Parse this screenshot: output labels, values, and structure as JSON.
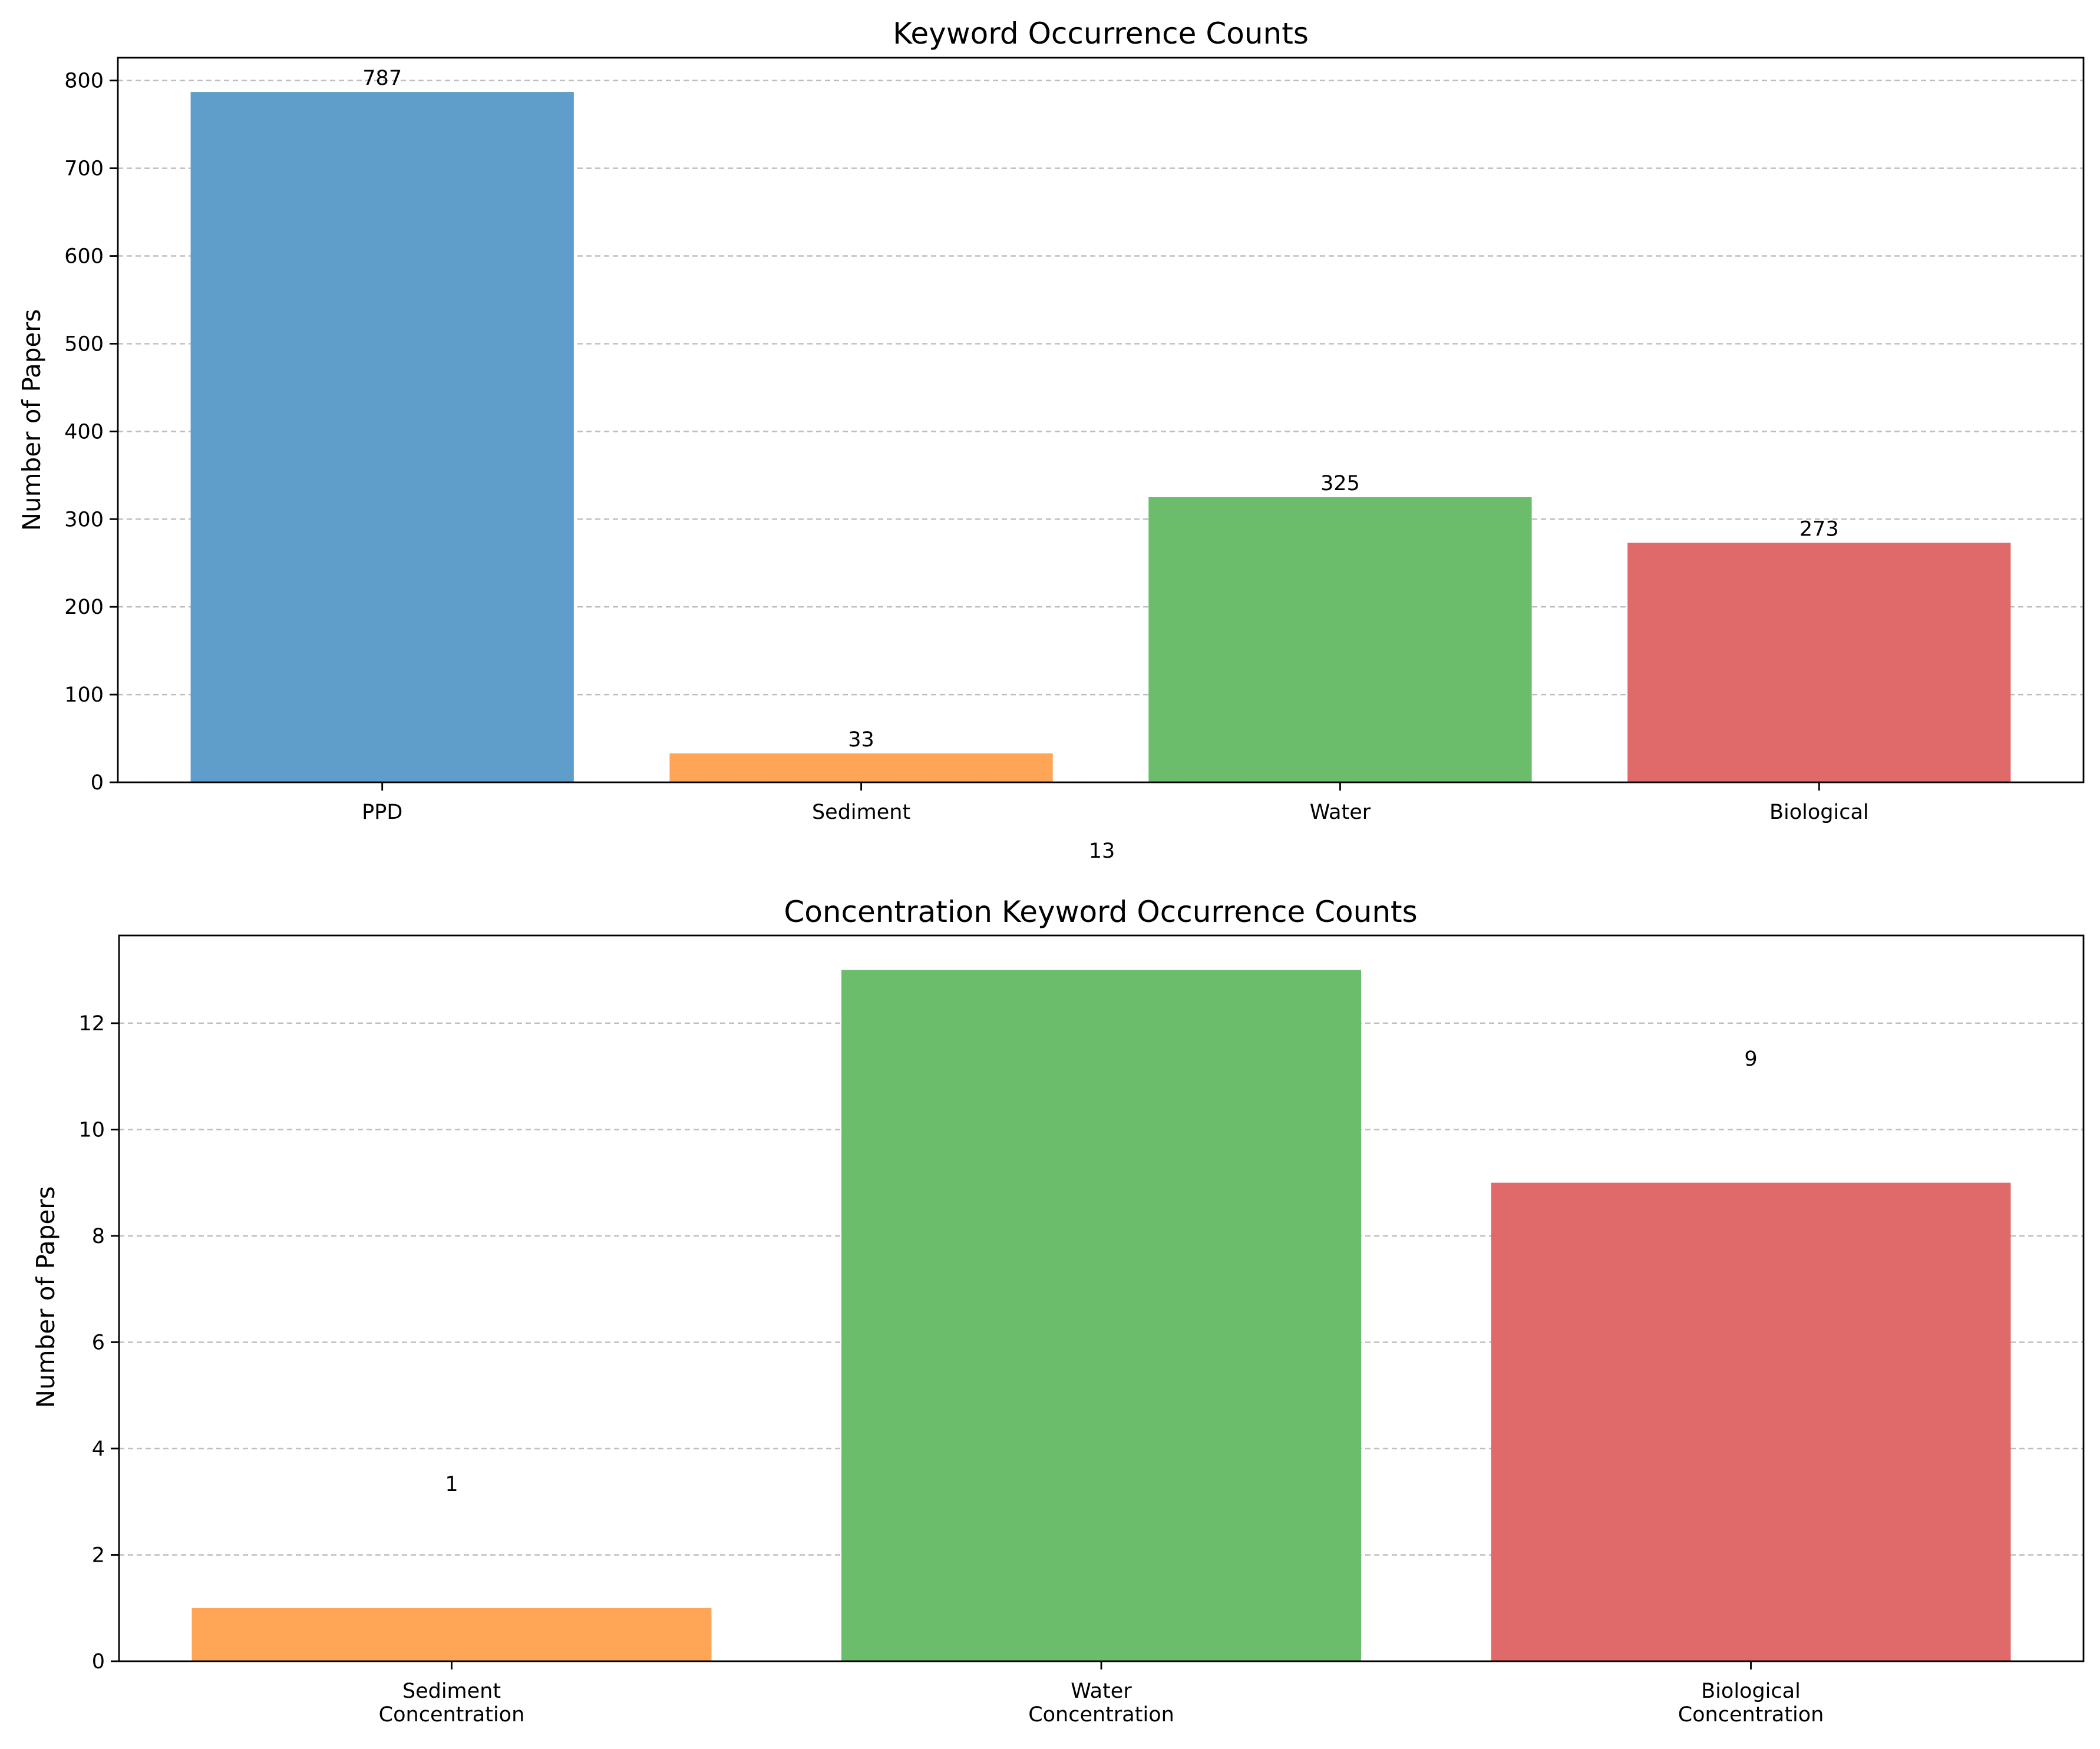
{
  "chart_data": [
    {
      "type": "bar",
      "title": "Keyword Occurrence Counts",
      "xlabel": "",
      "ylabel": "Number of Papers",
      "categories": [
        "PPD",
        "Sediment",
        "Water",
        "Biological"
      ],
      "values": [
        787,
        33,
        325,
        273
      ],
      "colors": [
        "#5f9ecb",
        "#fea656",
        "#6bbd6c",
        "#e06a6a"
      ],
      "data_labels": [
        "787",
        "33",
        "325",
        "273"
      ],
      "ylim": [
        0,
        826
      ],
      "yticks": [
        0,
        100,
        200,
        300,
        400,
        500,
        600,
        700,
        800
      ],
      "grid": "y-dashed",
      "stray_text": "13"
    },
    {
      "type": "bar",
      "title": "Concentration Keyword Occurrence Counts",
      "xlabel": "",
      "ylabel": "Number of Papers",
      "categories": [
        [
          "Sediment",
          "Concentration"
        ],
        [
          "Water",
          "Concentration"
        ],
        [
          "Biological",
          "Concentration"
        ]
      ],
      "values": [
        1,
        13,
        9
      ],
      "colors": [
        "#fea656",
        "#6bbd6c",
        "#e06a6a"
      ],
      "data_labels": [
        {
          "text": "1",
          "y": 3.2
        },
        {
          "text": "9",
          "y": 11.2
        }
      ],
      "ylim": [
        0,
        13.65
      ],
      "yticks": [
        0,
        2,
        4,
        6,
        8,
        10,
        12
      ],
      "grid": "y-dashed"
    }
  ]
}
